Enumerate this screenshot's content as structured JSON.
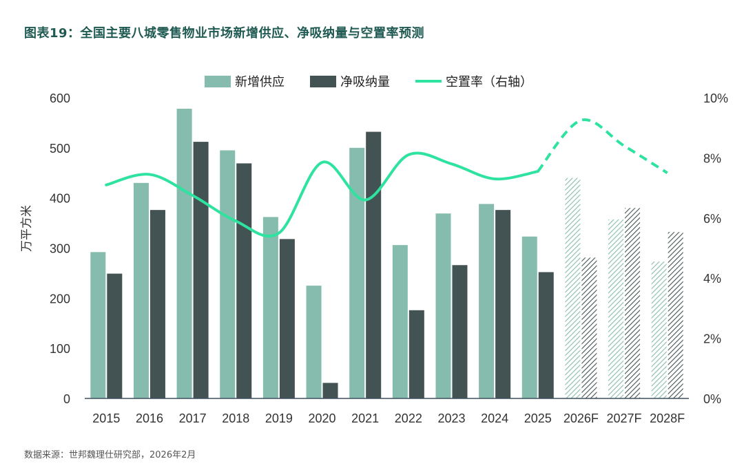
{
  "title": "图表19：全国主要八城零售物业市场新增供应、净吸纳量与空置率预测",
  "source": "数据来源：世邦魏理仕研究部，2026年2月",
  "chart_data": {
    "type": "bar",
    "categories": [
      "2015",
      "2016",
      "2017",
      "2018",
      "2019",
      "2020",
      "2021",
      "2022",
      "2023",
      "2024",
      "2025",
      "2026F",
      "2027F",
      "2028F"
    ],
    "forecast_from_index": 11,
    "series": [
      {
        "name": "新增供应",
        "kind": "bar",
        "axis": "left",
        "color": "#86bcad",
        "values": [
          292,
          430,
          578,
          495,
          362,
          225,
          500,
          306,
          369,
          388,
          323,
          440,
          357,
          273
        ]
      },
      {
        "name": "净吸纳量",
        "kind": "bar",
        "axis": "left",
        "color": "#435252",
        "values": [
          249,
          376,
          512,
          469,
          318,
          31,
          532,
          176,
          266,
          376,
          252,
          281,
          380,
          332
        ]
      },
      {
        "name": "空置率（右轴",
        "kind": "line",
        "axis": "right",
        "color": "#2ee2a0",
        "values": [
          7.1,
          7.45,
          6.75,
          5.9,
          5.5,
          7.85,
          6.6,
          8.1,
          7.8,
          7.3,
          7.55,
          9.25,
          8.4,
          7.5
        ]
      }
    ],
    "ylabel": "万平方米",
    "ylim": [
      0,
      600
    ],
    "yticks": [
      "0",
      "100",
      "200",
      "300",
      "400",
      "500",
      "600"
    ],
    "y2lim": [
      0,
      10
    ],
    "y2ticks": [
      "0%",
      "2%",
      "4%",
      "6%",
      "8%",
      "10%"
    ],
    "legend_position": "top-center"
  }
}
